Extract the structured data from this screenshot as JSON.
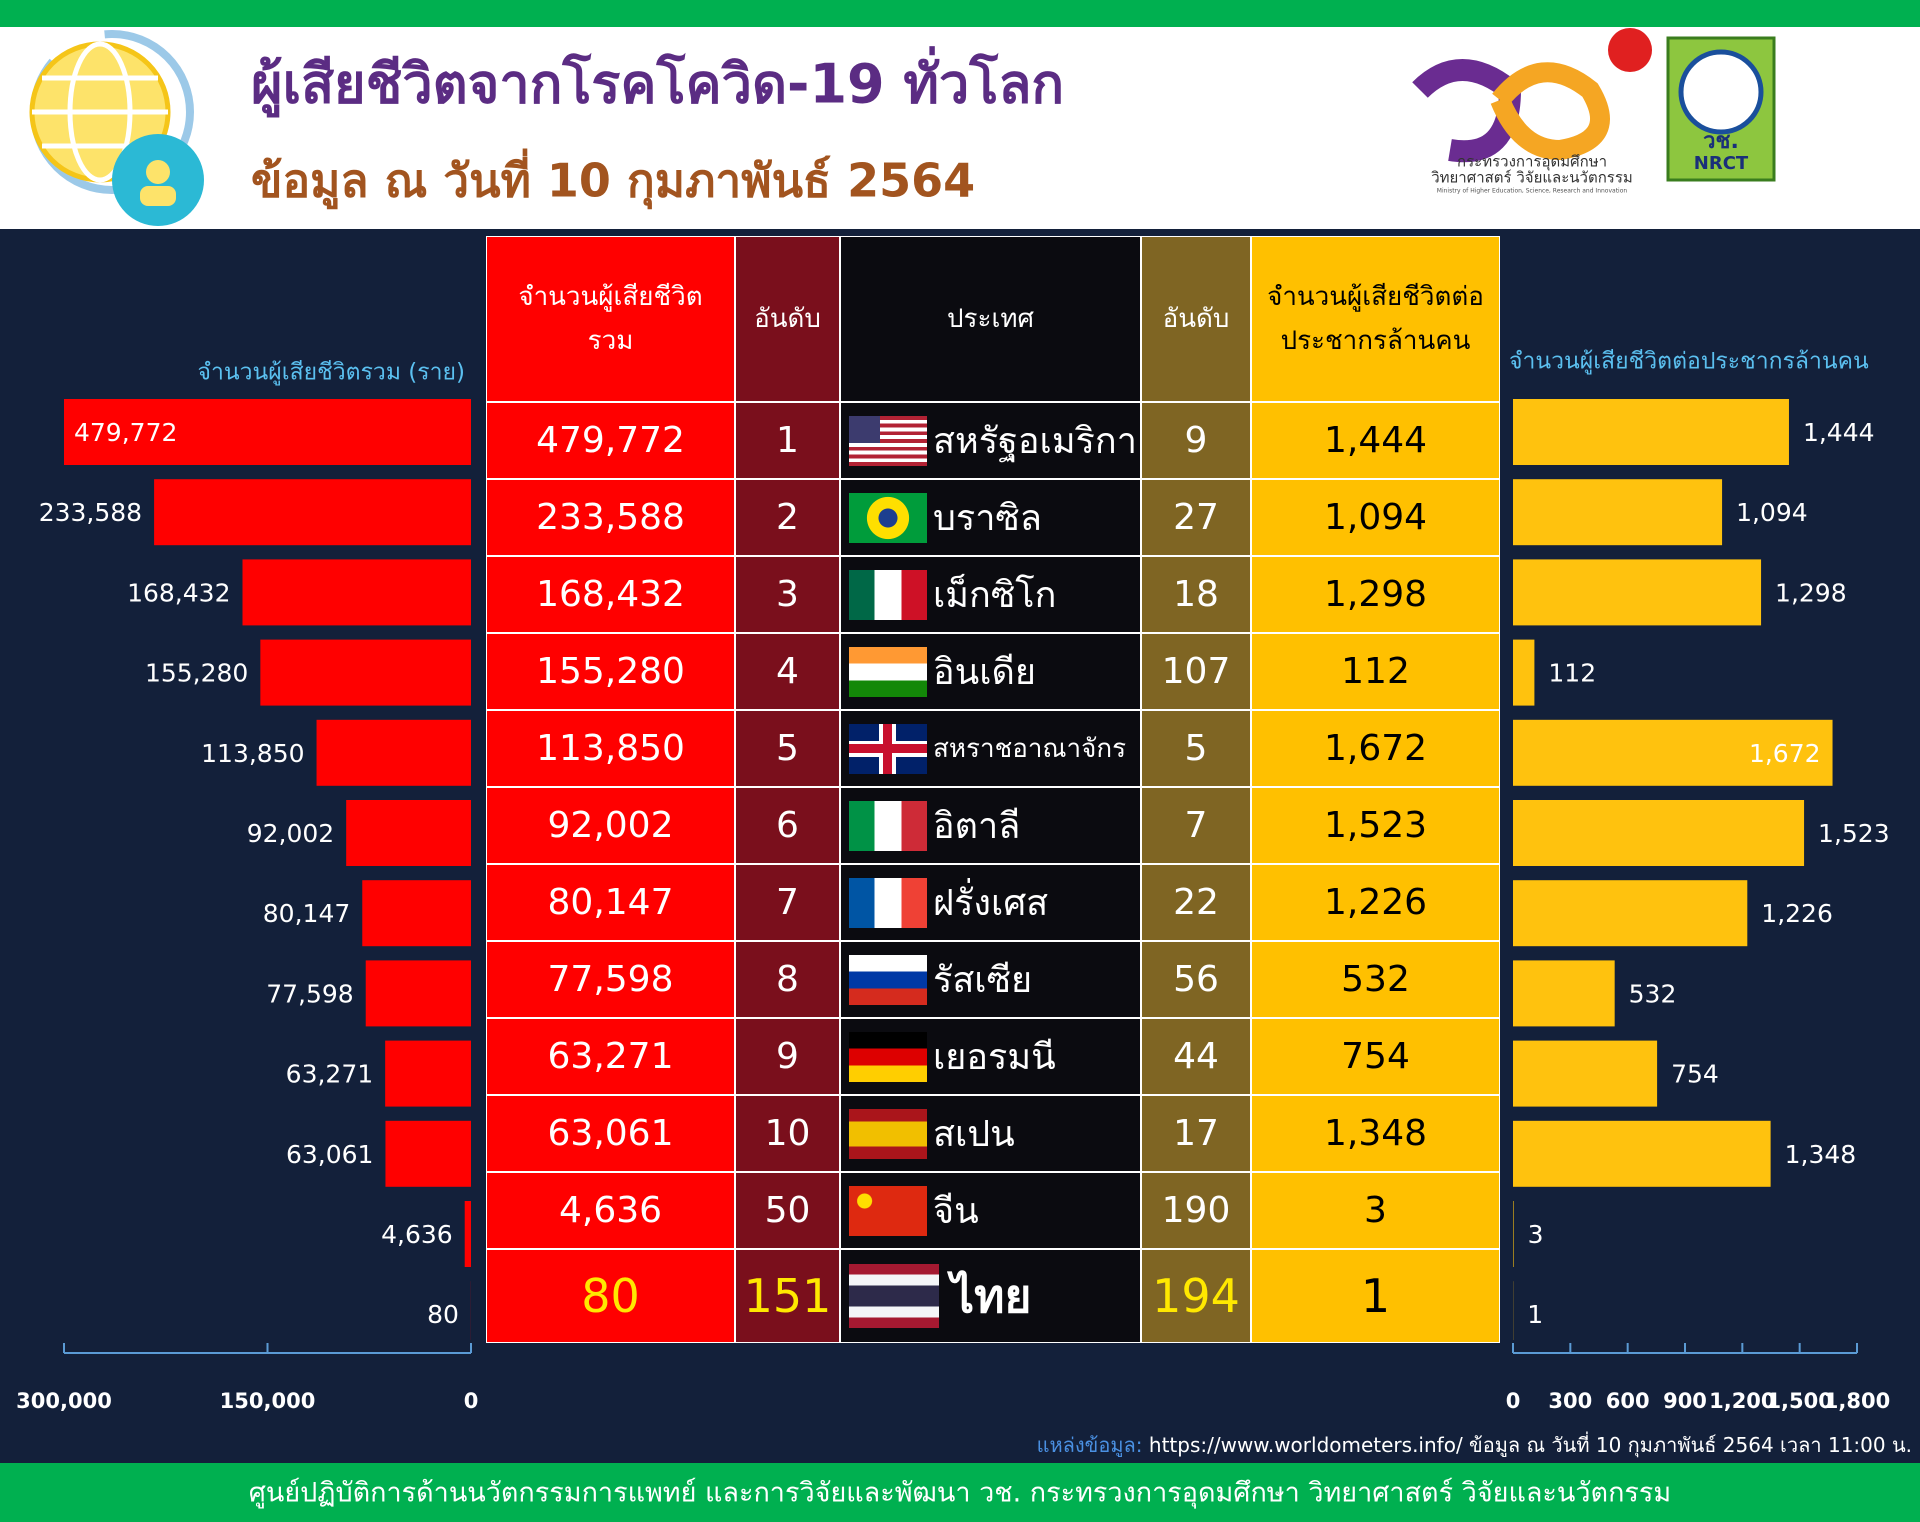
{
  "header": {
    "title": "ผู้เสียชีวิตจากโรคโควิด-19 ทั่วโลก",
    "subtitle": "ข้อมูล ณ วันที่ 10 กุมภาพันธ์ 2564",
    "logo_text": [
      "กระทรวงการอุดมศึกษา",
      "วิทยาศาสตร์ วิจัยและนวัตกรรม",
      "Ministry of Higher Education, Science, Research and Innovation"
    ],
    "nrct": [
      "วช.",
      "NRCT"
    ]
  },
  "table": {
    "header": [
      "จำนวนผู้เสียชีวิต รวม",
      "อันดับ",
      "ประเทศ",
      "อันดับ",
      "จำนวนผู้เสียชีวิตต่อ ประชากรล้านคน"
    ],
    "rows": [
      [
        "479,772",
        "1",
        "สหรัฐอเมริกา",
        "9",
        "1,444"
      ],
      [
        "233,588",
        "2",
        "บราซิล",
        "27",
        "1,094"
      ],
      [
        "168,432",
        "3",
        "เม็กซิโก",
        "18",
        "1,298"
      ],
      [
        "155,280",
        "4",
        "อินเดีย",
        "107",
        "112"
      ],
      [
        "113,850",
        "5",
        "สหราชอาณาจักร",
        "5",
        "1,672"
      ],
      [
        "92,002",
        "6",
        "อิตาลี",
        "7",
        "1,523"
      ],
      [
        "80,147",
        "7",
        "ฝรั่งเศส",
        "22",
        "1,226"
      ],
      [
        "77,598",
        "8",
        "รัสเซีย",
        "56",
        "532"
      ],
      [
        "63,271",
        "9",
        "เยอรมนี",
        "44",
        "754"
      ],
      [
        "63,061",
        "10",
        "สเปน",
        "17",
        "1,348"
      ],
      [
        "4,636",
        "50",
        "จีน",
        "190",
        "3"
      ],
      [
        "80",
        "151",
        "ไทย",
        "194",
        "1"
      ]
    ]
  },
  "chart_data": [
    {
      "type": "bar",
      "orientation": "horizontal",
      "axis_title": "จำนวนผู้เสียชีวิตรวม (ราย)",
      "color": "#ff0000",
      "values": [
        479772,
        233588,
        168432,
        155280,
        113850,
        92002,
        80147,
        77598,
        63271,
        63061,
        4636,
        80
      ],
      "value_labels": [
        "479,772",
        "233,588",
        "168,432",
        "155,280",
        "113,850",
        "92,002",
        "80,147",
        "77,598",
        "63,271",
        "63,061",
        "4,636",
        "80"
      ],
      "xlim": [
        300000,
        0
      ],
      "xticks": [
        {
          "value": 300000,
          "label": "300,000"
        },
        {
          "value": 150000,
          "label": "150,000"
        },
        0
      ]
    },
    {
      "type": "bar",
      "orientation": "horizontal",
      "axis_title": "จำนวนผู้เสียชีวิตต่อประชากรล้านคน",
      "color": "#ffc20e",
      "values": [
        1444,
        1094,
        1298,
        112,
        1672,
        1523,
        1226,
        532,
        754,
        1348,
        3,
        1
      ],
      "value_labels": [
        "1,444",
        "1,094",
        "1,298",
        "112",
        "1,672",
        "1,523",
        "1,226",
        "532",
        "754",
        "1,348",
        "3",
        "1"
      ],
      "xlim": [
        0,
        1800
      ],
      "xticks": [
        0,
        300,
        600,
        900,
        {
          "value": 1200,
          "label": "1,200"
        },
        {
          "value": 1500,
          "label": "1,500"
        },
        {
          "value": 1800,
          "label": "1,800"
        }
      ]
    }
  ],
  "source": {
    "label": "แหล่งข้อมูล:",
    "text": "https://www.worldometers.info/ ข้อมูล ณ วันที่ 10 กุมภาพันธ์ 2564 เวลา 11:00 น."
  },
  "footer": "ศูนย์ปฏิบัติการด้านนวัตกรรมการแพทย์ และการวิจัยและพัฒนา  วช.   กระทรวงการอุดมศึกษา วิทยาศาสตร์ วิจัยและนวัตกรรม"
}
